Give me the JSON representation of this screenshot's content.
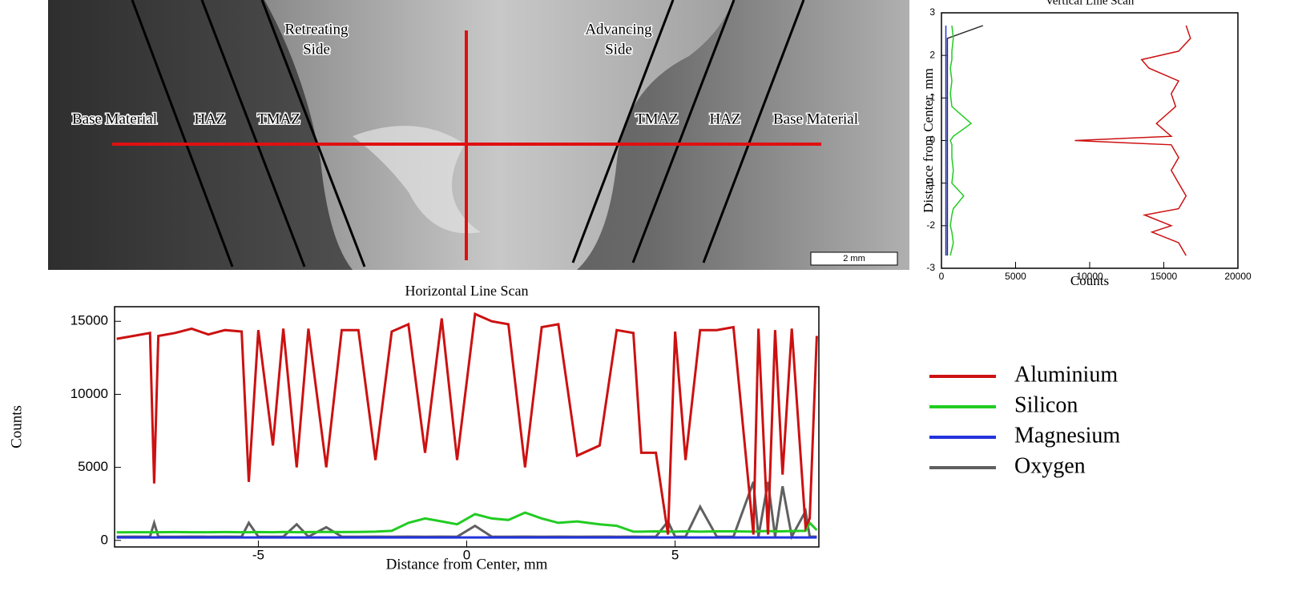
{
  "micrograph": {
    "labels": [
      [
        "Retreating",
        "Side"
      ],
      [
        "Advancing",
        "Side"
      ],
      [
        "Base Material"
      ],
      [
        "HAZ"
      ],
      [
        "TMAZ"
      ],
      [
        "TMAZ"
      ],
      [
        "HAZ"
      ],
      [
        "Base Material"
      ]
    ],
    "scale_bar": "2 mm"
  },
  "chart_data": [
    {
      "type": "line",
      "orientation": "horizontal",
      "title": "Horizontal Line Scan",
      "x_label": "Distance from Center, mm",
      "y_label": "Counts",
      "xlim": [
        -8.45,
        8.45
      ],
      "xticks": [
        -5,
        0,
        5
      ],
      "ylim": [
        -450,
        16000
      ],
      "yticks": [
        0,
        5000,
        10000,
        15000
      ],
      "x": [
        -8.4,
        -8.0,
        -7.6,
        -7.5,
        -7.4,
        -7.0,
        -6.6,
        -6.2,
        -5.8,
        -5.4,
        -5.23,
        -5.0,
        -4.65,
        -4.4,
        -4.08,
        -3.8,
        -3.37,
        -3.0,
        -2.6,
        -2.19,
        -1.8,
        -1.4,
        -1.0,
        -0.6,
        -0.23,
        0.2,
        0.6,
        1.0,
        1.4,
        1.8,
        2.2,
        2.65,
        3.19,
        3.6,
        4.0,
        4.19,
        4.54,
        4.83,
        5.0,
        5.25,
        5.6,
        6.0,
        6.4,
        6.88,
        7.0,
        7.23,
        7.4,
        7.58,
        7.8,
        8.13,
        8.23,
        8.4
      ],
      "series": [
        {
          "name": "Aluminium",
          "color": "#cc1111",
          "values": [
            13800,
            14000,
            14200,
            3900,
            14000,
            14200,
            14500,
            14100,
            14400,
            14300,
            4000,
            14400,
            6500,
            14500,
            5000,
            14500,
            5000,
            14400,
            14400,
            5500,
            14300,
            14800,
            6000,
            15200,
            5500,
            15500,
            15000,
            14800,
            5000,
            14600,
            14800,
            5800,
            6500,
            14400,
            14200,
            6000,
            6000,
            400,
            14300,
            5500,
            14400,
            14400,
            14600,
            400,
            14500,
            400,
            14400,
            4500,
            14500,
            900,
            1500,
            14000
          ]
        },
        {
          "name": "Silicon",
          "color": "#22cc22",
          "values": [
            550,
            560,
            560,
            550,
            560,
            570,
            560,
            560,
            570,
            560,
            560,
            570,
            560,
            580,
            560,
            570,
            580,
            570,
            580,
            600,
            650,
            1200,
            1500,
            1300,
            1100,
            1800,
            1500,
            1400,
            1900,
            1500,
            1200,
            1300,
            1100,
            1000,
            600,
            600,
            620,
            600,
            600,
            620,
            600,
            620,
            620,
            600,
            620,
            640,
            620,
            620,
            640,
            650,
            1200,
            700
          ]
        },
        {
          "name": "Magnesium",
          "color": "#2233dd",
          "values": [
            200,
            200,
            200,
            200,
            200,
            200,
            200,
            200,
            200,
            200,
            200,
            200,
            200,
            200,
            200,
            200,
            200,
            200,
            200,
            200,
            200,
            200,
            200,
            200,
            200,
            200,
            200,
            200,
            200,
            200,
            200,
            200,
            200,
            200,
            200,
            200,
            200,
            200,
            200,
            200,
            200,
            200,
            200,
            200,
            200,
            200,
            200,
            200,
            200,
            200,
            200,
            200
          ]
        },
        {
          "name": "Oxygen",
          "color": "#606060",
          "values": [
            250,
            260,
            250,
            1200,
            260,
            250,
            260,
            250,
            260,
            250,
            1200,
            260,
            250,
            260,
            1100,
            250,
            900,
            260,
            250,
            260,
            250,
            260,
            250,
            260,
            250,
            1000,
            260,
            250,
            260,
            250,
            260,
            250,
            260,
            250,
            260,
            250,
            260,
            1300,
            260,
            250,
            2300,
            260,
            250,
            4000,
            260,
            4000,
            250,
            3700,
            260,
            2000,
            260,
            250
          ]
        }
      ]
    },
    {
      "type": "line",
      "orientation": "vertical",
      "title": "Vertical Line Scan",
      "x_label": "Counts",
      "y_label": "Distance from Center, mm",
      "xlim": [
        0,
        20000
      ],
      "xticks": [
        0,
        5000,
        10000,
        15000,
        20000
      ],
      "ylim": [
        -3,
        3
      ],
      "yticks": [
        -3,
        -2,
        -1,
        0,
        1,
        2,
        3
      ],
      "y": [
        2.7,
        2.4,
        2.1,
        1.9,
        1.7,
        1.4,
        1.1,
        0.8,
        0.4,
        0.1,
        0.0,
        -0.1,
        -0.4,
        -0.7,
        -1.0,
        -1.3,
        -1.6,
        -1.75,
        -2.0,
        -2.15,
        -2.4,
        -2.7
      ],
      "series": [
        {
          "color": "#cc1111",
          "values": [
            16500,
            16800,
            16000,
            13500,
            14000,
            16000,
            15500,
            15800,
            14500,
            15500,
            9000,
            15500,
            16000,
            15500,
            16000,
            16500,
            16000,
            13700,
            15500,
            14200,
            16000,
            16500
          ]
        },
        {
          "color": "#22cc22",
          "values": [
            700,
            800,
            700,
            700,
            600,
            700,
            600,
            700,
            2000,
            800,
            600,
            700,
            700,
            800,
            700,
            1500,
            800,
            700,
            600,
            700,
            800,
            600
          ]
        },
        {
          "color": "#2233dd",
          "values": [
            300,
            300,
            300,
            300,
            300,
            300,
            300,
            300,
            300,
            300,
            300,
            300,
            300,
            300,
            300,
            300,
            300,
            300,
            300,
            300,
            300,
            300
          ]
        },
        {
          "color": "#303030",
          "values": [
            2800,
            400,
            400,
            400,
            400,
            400,
            400,
            400,
            400,
            400,
            400,
            400,
            400,
            400,
            400,
            400,
            400,
            400,
            400,
            400,
            400,
            400
          ]
        }
      ]
    }
  ]
}
